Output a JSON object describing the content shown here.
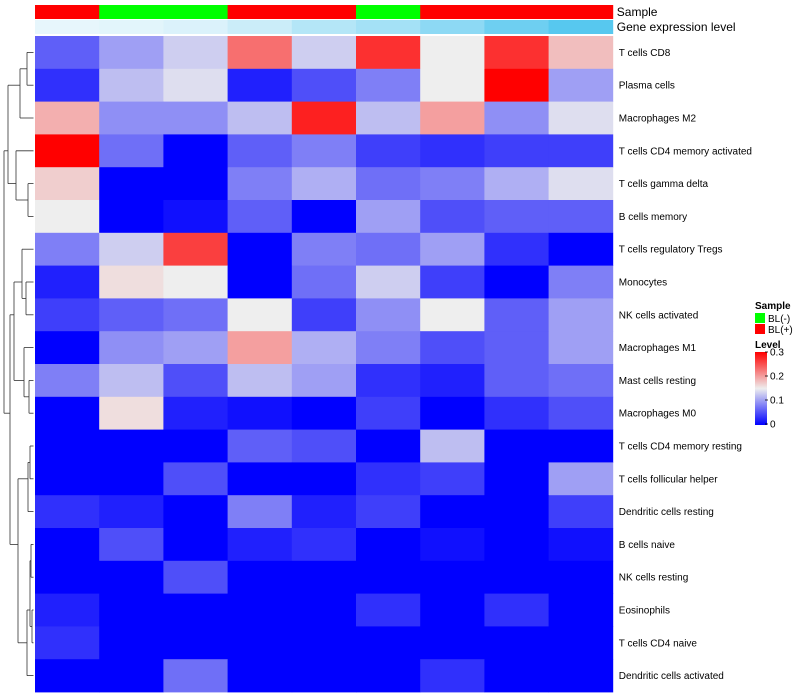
{
  "chart_data": {
    "type": "heatmap",
    "title": "",
    "columns": 9,
    "rows": [
      "T cells CD8",
      "Plasma cells",
      "Macrophages M2",
      "T cells CD4 memory activated",
      "T cells gamma delta",
      "B cells memory",
      "T cells regulatory  Tregs",
      "Monocytes",
      "NK cells activated",
      "Macrophages M1",
      "Mast cells resting",
      "Macrophages M0",
      "T cells CD4 memory resting",
      "T cells follicular helper",
      "Dendritic cells resting",
      "B cells naive",
      "NK cells resting",
      "Eosinophils",
      "T cells CD4 naive",
      "Dendritic cells activated"
    ],
    "values": [
      [
        0.06,
        0.1,
        0.13,
        0.23,
        0.13,
        0.27,
        0.15,
        0.27,
        0.18
      ],
      [
        0.03,
        0.12,
        0.14,
        0.02,
        0.05,
        0.08,
        0.15,
        0.3,
        0.1
      ],
      [
        0.19,
        0.09,
        0.09,
        0.12,
        0.28,
        0.12,
        0.2,
        0.09,
        0.14
      ],
      [
        0.3,
        0.07,
        0.0,
        0.06,
        0.08,
        0.04,
        0.03,
        0.04,
        0.04
      ],
      [
        0.17,
        0.0,
        0.0,
        0.08,
        0.11,
        0.07,
        0.08,
        0.11,
        0.14
      ],
      [
        0.15,
        0.0,
        0.01,
        0.06,
        0.0,
        0.1,
        0.05,
        0.06,
        0.06
      ],
      [
        0.08,
        0.13,
        0.26,
        0.0,
        0.08,
        0.07,
        0.1,
        0.03,
        0.0
      ],
      [
        0.02,
        0.16,
        0.15,
        0.0,
        0.07,
        0.13,
        0.04,
        0.0,
        0.08
      ],
      [
        0.04,
        0.06,
        0.07,
        0.15,
        0.04,
        0.09,
        0.15,
        0.06,
        0.1
      ],
      [
        0.0,
        0.09,
        0.1,
        0.2,
        0.11,
        0.08,
        0.05,
        0.06,
        0.1
      ],
      [
        0.08,
        0.12,
        0.05,
        0.12,
        0.1,
        0.03,
        0.02,
        0.06,
        0.07
      ],
      [
        0.0,
        0.16,
        0.02,
        0.01,
        0.0,
        0.04,
        0.0,
        0.03,
        0.05
      ],
      [
        0.0,
        0.0,
        0.0,
        0.06,
        0.05,
        0.0,
        0.12,
        0.0,
        0.0
      ],
      [
        0.0,
        0.0,
        0.05,
        0.0,
        0.0,
        0.03,
        0.04,
        0.0,
        0.1
      ],
      [
        0.03,
        0.02,
        0.0,
        0.08,
        0.02,
        0.04,
        0.0,
        0.0,
        0.04
      ],
      [
        0.0,
        0.05,
        0.0,
        0.02,
        0.03,
        0.0,
        0.01,
        0.0,
        0.01
      ],
      [
        0.0,
        0.0,
        0.05,
        0.0,
        0.0,
        0.0,
        0.0,
        0.0,
        0.0
      ],
      [
        0.02,
        0.0,
        0.0,
        0.0,
        0.0,
        0.03,
        0.0,
        0.03,
        0.0
      ],
      [
        0.03,
        0.0,
        0.0,
        0.0,
        0.0,
        0.0,
        0.0,
        0.0,
        0.0
      ],
      [
        0.0,
        0.0,
        0.07,
        0.0,
        0.0,
        0.0,
        0.03,
        0.0,
        0.0
      ]
    ],
    "annotations": {
      "sample": {
        "label": "Sample",
        "values": [
          "BL(+)",
          "BL(-)",
          "BL(-)",
          "BL(+)",
          "BL(+)",
          "BL(-)",
          "BL(+)",
          "BL(+)",
          "BL(+)"
        ]
      },
      "expression": {
        "label": "Gene expression level",
        "values": [
          0.02,
          0.05,
          0.1,
          0.2,
          0.35,
          0.45,
          0.6,
          0.8,
          0.95
        ]
      }
    },
    "legend": {
      "placement": "right",
      "sample_title": "Sample",
      "sample_entries": [
        {
          "label": "BL(-)",
          "color": "#00ff00"
        },
        {
          "label": "BL(+)",
          "color": "#ff0000"
        }
      ],
      "level_title": "Level",
      "level_ticks": [
        "0.3",
        "0.2",
        "0.1",
        "0"
      ],
      "level_tick_values": [
        0.3,
        0.2,
        0.1,
        0
      ]
    },
    "color_scale": {
      "low": "#0000ff",
      "mid": "#eeeeee",
      "high": "#ff0000",
      "min": 0,
      "mid_value": 0.15,
      "max": 0.3
    },
    "expression_scale": {
      "low": "#eaf7fc",
      "high": "#4fc5ee"
    }
  }
}
